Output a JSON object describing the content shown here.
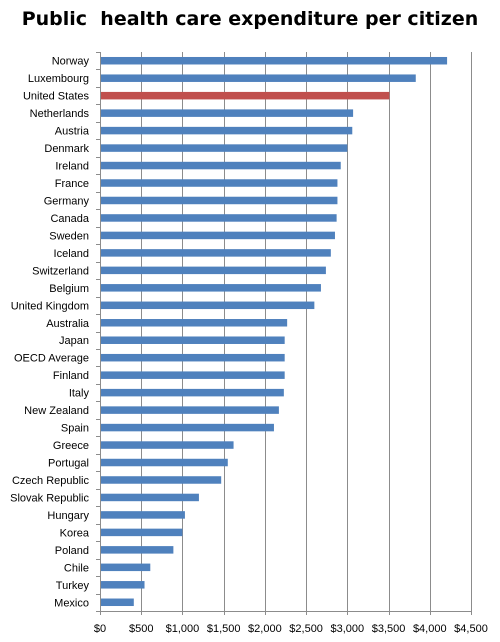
{
  "chart_data": {
    "type": "bar",
    "orientation": "horizontal",
    "title": "Public  health care expenditure per citizen",
    "xlabel": "",
    "ylabel": "",
    "xlim": [
      0,
      4500
    ],
    "x_ticks": [
      "$0",
      "$500",
      "$1,000",
      "$1,500",
      "$2,000",
      "$2,500",
      "$3,000",
      "$3,500",
      "$4,000",
      "$4,500"
    ],
    "x_tick_values": [
      0,
      500,
      1000,
      1500,
      2000,
      2500,
      3000,
      3500,
      4000,
      4500
    ],
    "grid": "vertical",
    "bar_color": "#4f81bd",
    "highlight_color": "#c0504d",
    "highlight_category": "United States",
    "categories": [
      "Norway",
      "Luxembourg",
      "United States",
      "Netherlands",
      "Austria",
      "Denmark",
      "Ireland",
      "France",
      "Germany",
      "Canada",
      "Sweden",
      "Iceland",
      "Switzerland",
      "Belgium",
      "United Kingdom",
      "Australia",
      "Japan",
      "OECD Average",
      "Finland",
      "Italy",
      "New Zealand",
      "Spain",
      "Greece",
      "Portugal",
      "Czech Republic",
      "Slovak Republic",
      "Hungary",
      "Korea",
      "Poland",
      "Chile",
      "Turkey",
      "Mexico"
    ],
    "values": [
      4210,
      3830,
      3510,
      3070,
      3060,
      3000,
      2920,
      2880,
      2880,
      2870,
      2850,
      2800,
      2740,
      2680,
      2600,
      2270,
      2240,
      2240,
      2240,
      2230,
      2170,
      2110,
      1620,
      1550,
      1470,
      1200,
      1030,
      1000,
      890,
      610,
      540,
      410
    ]
  }
}
